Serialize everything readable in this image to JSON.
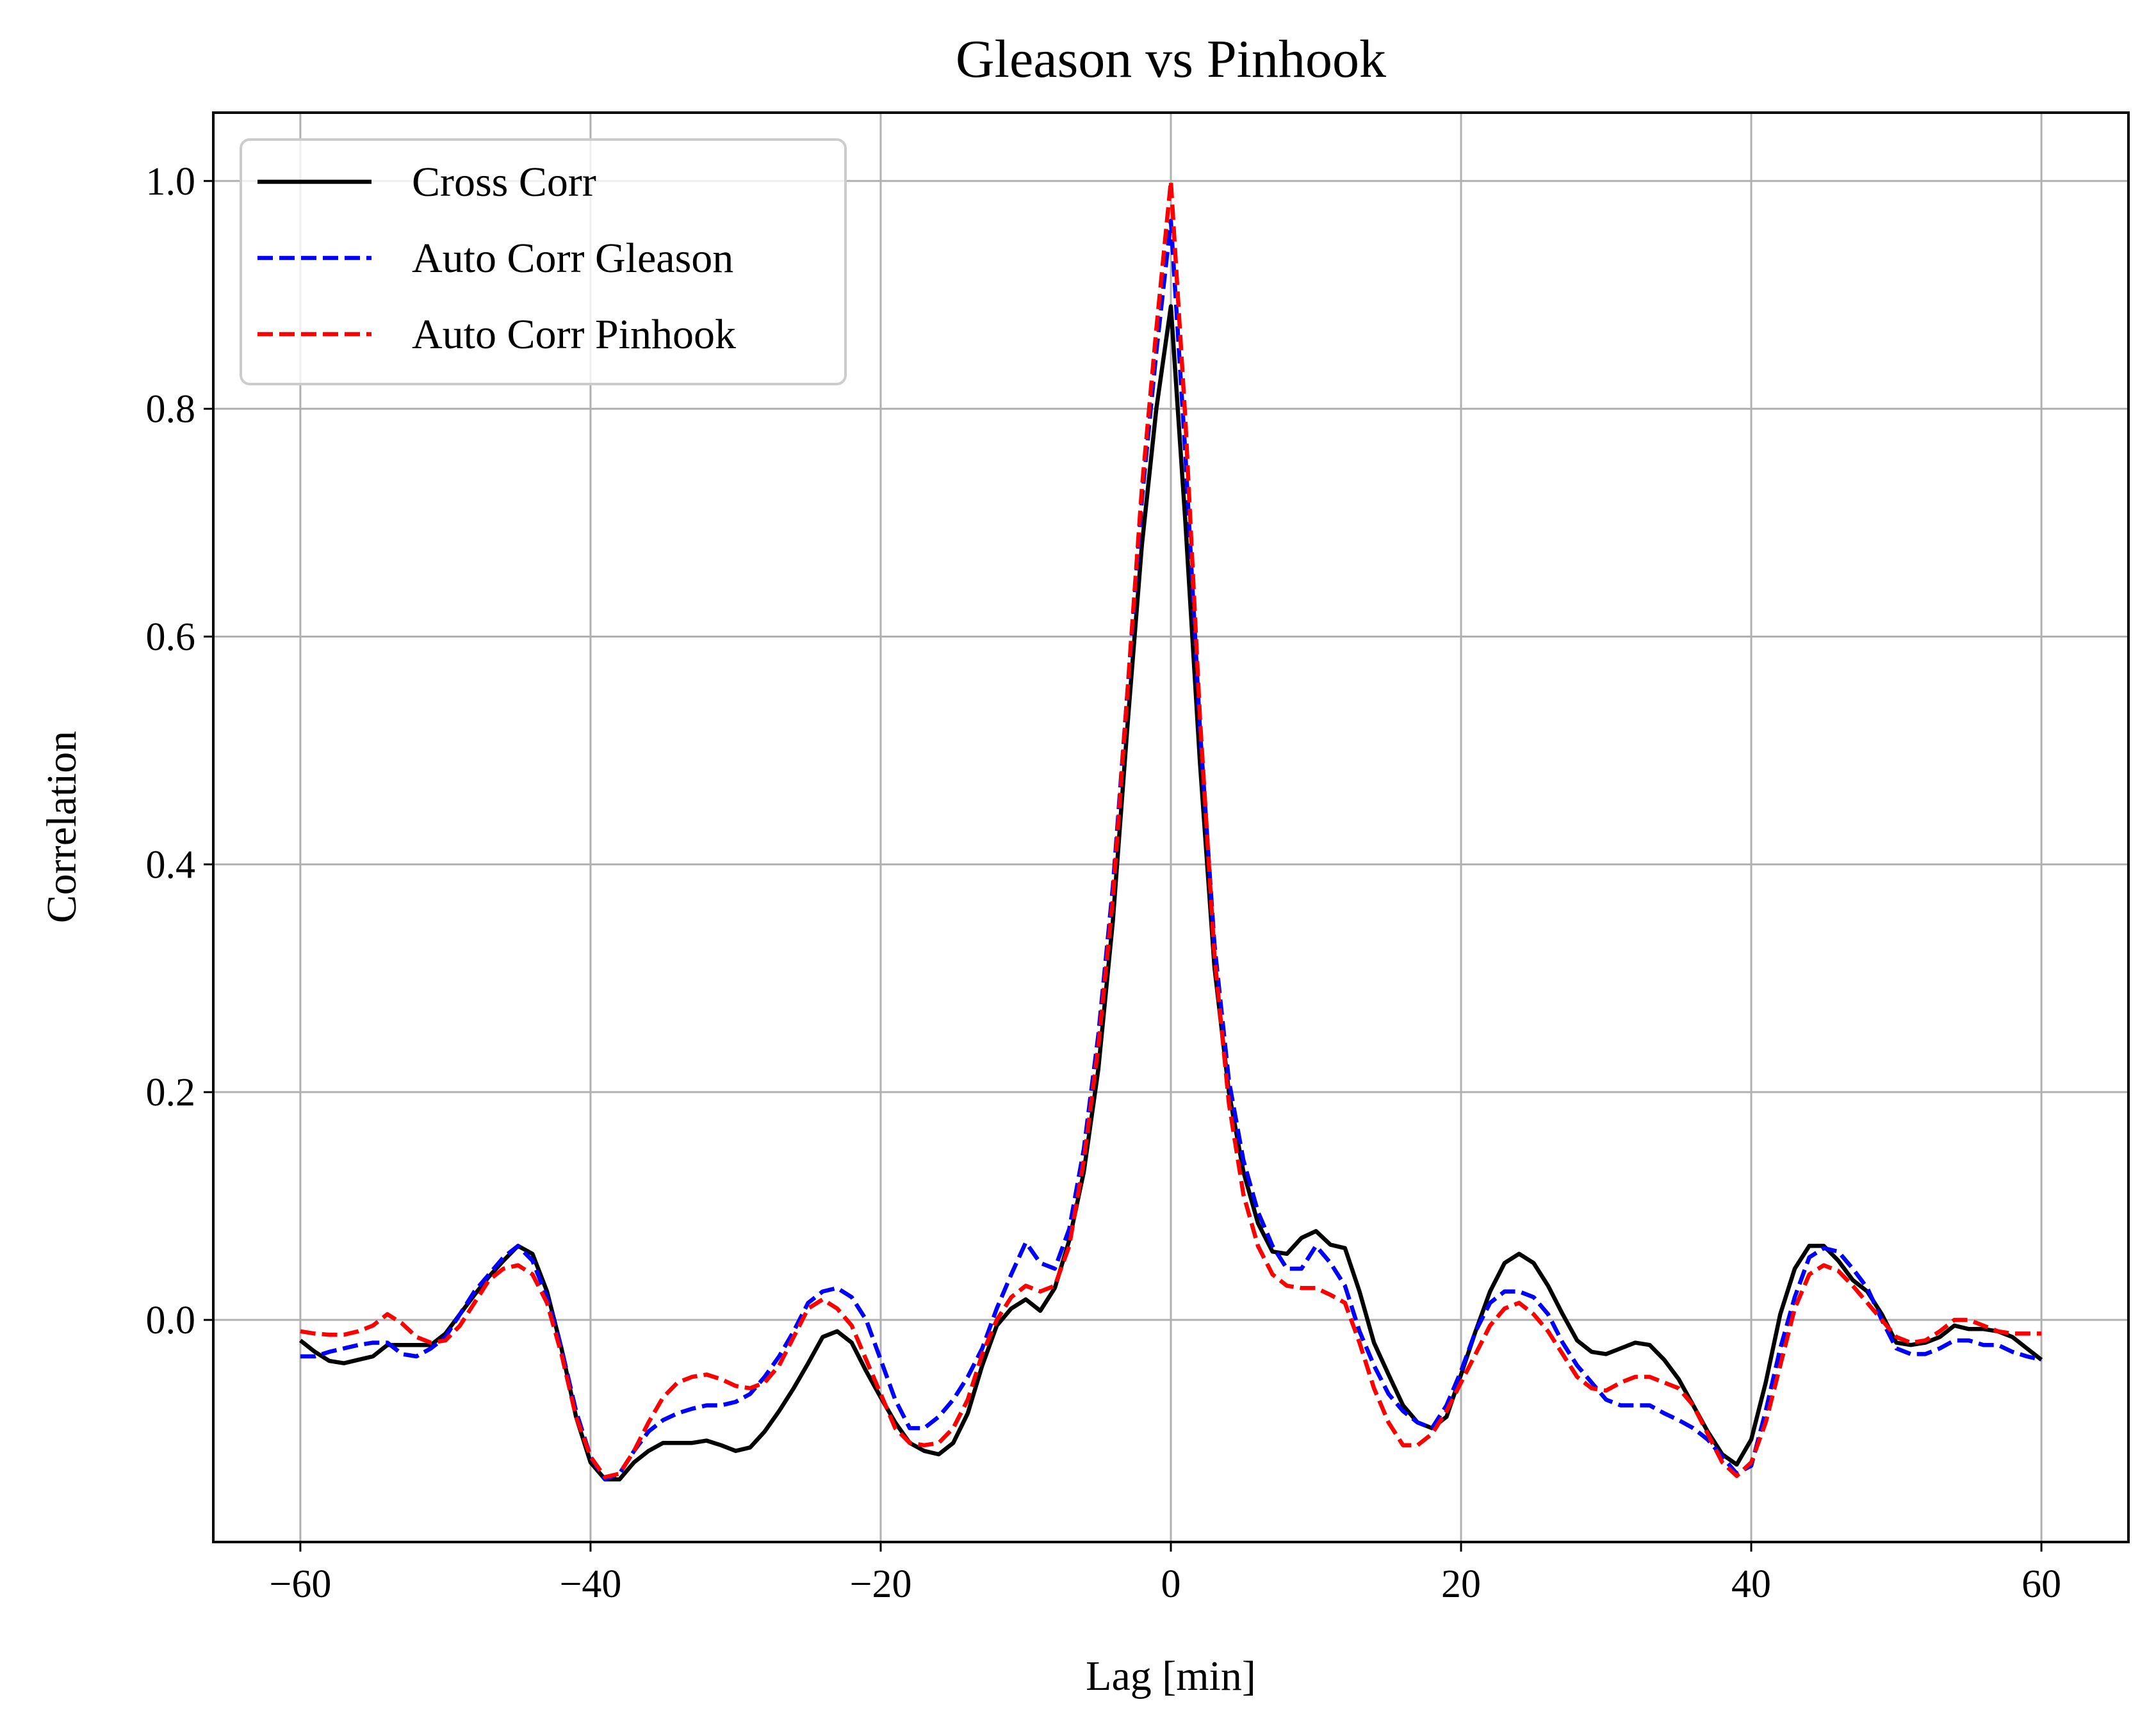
{
  "chart_data": {
    "type": "line",
    "title": "Gleason vs Pinhook",
    "xlabel": "Lag [min]",
    "ylabel": "Correlation",
    "xlim": [
      -66,
      66
    ],
    "ylim": [
      -0.195,
      1.06
    ],
    "xticks": [
      {
        "value": -60,
        "label": "−60"
      },
      {
        "value": -40,
        "label": "−40"
      },
      {
        "value": -20,
        "label": "−20"
      },
      {
        "value": 0,
        "label": "0"
      },
      {
        "value": 20,
        "label": "20"
      },
      {
        "value": 40,
        "label": "40"
      },
      {
        "value": 60,
        "label": "60"
      }
    ],
    "yticks": [
      {
        "value": 0.0,
        "label": "0.0"
      },
      {
        "value": 0.2,
        "label": "0.2"
      },
      {
        "value": 0.4,
        "label": "0.4"
      },
      {
        "value": 0.6,
        "label": "0.6"
      },
      {
        "value": 0.8,
        "label": "0.8"
      },
      {
        "value": 1.0,
        "label": "1.0"
      }
    ],
    "grid": true,
    "legend_position": "top-left",
    "series": [
      {
        "name": "Cross Corr",
        "color": "#000000",
        "dash": "solid",
        "x": [
          -60,
          -59,
          -58,
          -57,
          -56,
          -55,
          -54,
          -53,
          -52,
          -51,
          -50,
          -49,
          -48,
          -47,
          -46,
          -45,
          -44,
          -43,
          -42,
          -41,
          -40,
          -39,
          -38,
          -37,
          -36,
          -35,
          -34,
          -33,
          -32,
          -31,
          -30,
          -29,
          -28,
          -27,
          -26,
          -25,
          -24,
          -23,
          -22,
          -21,
          -20,
          -19,
          -18,
          -17,
          -16,
          -15,
          -14,
          -13,
          -12,
          -11,
          -10,
          -9,
          -8,
          -7,
          -6,
          -5,
          -4,
          -3,
          -2,
          -1,
          0,
          1,
          2,
          3,
          4,
          5,
          6,
          7,
          8,
          9,
          10,
          11,
          12,
          13,
          14,
          15,
          16,
          17,
          18,
          19,
          20,
          21,
          22,
          23,
          24,
          25,
          26,
          27,
          28,
          29,
          30,
          31,
          32,
          33,
          34,
          35,
          36,
          37,
          38,
          39,
          40,
          41,
          42,
          43,
          44,
          45,
          46,
          47,
          48,
          49,
          50,
          51,
          52,
          53,
          54,
          55,
          56,
          57,
          58,
          59,
          60
        ],
        "y": [
          -0.018,
          -0.028,
          -0.036,
          -0.038,
          -0.035,
          -0.032,
          -0.022,
          -0.022,
          -0.022,
          -0.022,
          -0.012,
          0.005,
          0.022,
          0.038,
          0.052,
          0.065,
          0.058,
          0.025,
          -0.025,
          -0.085,
          -0.125,
          -0.14,
          -0.14,
          -0.125,
          -0.115,
          -0.108,
          -0.108,
          -0.108,
          -0.106,
          -0.11,
          -0.115,
          -0.112,
          -0.098,
          -0.08,
          -0.06,
          -0.038,
          -0.015,
          -0.01,
          -0.02,
          -0.045,
          -0.068,
          -0.09,
          -0.108,
          -0.115,
          -0.118,
          -0.108,
          -0.082,
          -0.04,
          -0.005,
          0.01,
          0.018,
          0.008,
          0.028,
          0.07,
          0.13,
          0.22,
          0.35,
          0.52,
          0.68,
          0.8,
          0.89,
          0.7,
          0.49,
          0.31,
          0.2,
          0.13,
          0.085,
          0.06,
          0.058,
          0.072,
          0.078,
          0.066,
          0.063,
          0.025,
          -0.02,
          -0.048,
          -0.075,
          -0.09,
          -0.095,
          -0.085,
          -0.048,
          -0.01,
          0.025,
          0.05,
          0.058,
          0.05,
          0.03,
          0.005,
          -0.018,
          -0.028,
          -0.03,
          -0.025,
          -0.02,
          -0.022,
          -0.035,
          -0.052,
          -0.075,
          -0.098,
          -0.118,
          -0.127,
          -0.105,
          -0.055,
          0.005,
          0.045,
          0.065,
          0.065,
          0.052,
          0.035,
          0.025,
          0.005,
          -0.02,
          -0.022,
          -0.02,
          -0.015,
          -0.005,
          -0.008,
          -0.008,
          -0.01,
          -0.015,
          -0.025,
          -0.035
        ]
      },
      {
        "name": "Auto Corr Gleason",
        "color": "#0000ff",
        "dash": "dashed",
        "x": [
          -60,
          -59,
          -58,
          -57,
          -56,
          -55,
          -54,
          -53,
          -52,
          -51,
          -50,
          -49,
          -48,
          -47,
          -46,
          -45,
          -44,
          -43,
          -42,
          -41,
          -40,
          -39,
          -38,
          -37,
          -36,
          -35,
          -34,
          -33,
          -32,
          -31,
          -30,
          -29,
          -28,
          -27,
          -26,
          -25,
          -24,
          -23,
          -22,
          -21,
          -20,
          -19,
          -18,
          -17,
          -16,
          -15,
          -14,
          -13,
          -12,
          -11,
          -10,
          -9,
          -8,
          -7,
          -6,
          -5,
          -4,
          -3,
          -2,
          -1,
          0,
          1,
          2,
          3,
          4,
          5,
          6,
          7,
          8,
          9,
          10,
          11,
          12,
          13,
          14,
          15,
          16,
          17,
          18,
          19,
          20,
          21,
          22,
          23,
          24,
          25,
          26,
          27,
          28,
          29,
          30,
          31,
          32,
          33,
          34,
          35,
          36,
          37,
          38,
          39,
          40,
          41,
          42,
          43,
          44,
          45,
          46,
          47,
          48,
          49,
          50,
          51,
          52,
          53,
          54,
          55,
          56,
          57,
          58,
          59,
          60
        ],
        "y": [
          -0.032,
          -0.032,
          -0.028,
          -0.025,
          -0.022,
          -0.02,
          -0.02,
          -0.03,
          -0.032,
          -0.025,
          -0.015,
          0.005,
          0.025,
          0.04,
          0.055,
          0.065,
          0.052,
          0.02,
          -0.025,
          -0.08,
          -0.12,
          -0.14,
          -0.135,
          -0.115,
          -0.098,
          -0.088,
          -0.082,
          -0.078,
          -0.075,
          -0.075,
          -0.072,
          -0.065,
          -0.05,
          -0.032,
          -0.01,
          0.015,
          0.025,
          0.028,
          0.02,
          0.0,
          -0.035,
          -0.07,
          -0.095,
          -0.095,
          -0.085,
          -0.07,
          -0.05,
          -0.025,
          0.01,
          0.04,
          0.068,
          0.05,
          0.045,
          0.08,
          0.15,
          0.25,
          0.38,
          0.55,
          0.72,
          0.85,
          0.965,
          0.76,
          0.52,
          0.33,
          0.21,
          0.14,
          0.095,
          0.065,
          0.045,
          0.045,
          0.065,
          0.05,
          0.03,
          -0.01,
          -0.04,
          -0.065,
          -0.08,
          -0.09,
          -0.095,
          -0.075,
          -0.045,
          -0.01,
          0.015,
          0.025,
          0.025,
          0.02,
          0.005,
          -0.02,
          -0.04,
          -0.055,
          -0.07,
          -0.075,
          -0.075,
          -0.075,
          -0.082,
          -0.088,
          -0.095,
          -0.105,
          -0.12,
          -0.135,
          -0.128,
          -0.08,
          -0.025,
          0.02,
          0.055,
          0.063,
          0.06,
          0.045,
          0.028,
          0.0,
          -0.025,
          -0.03,
          -0.03,
          -0.025,
          -0.018,
          -0.018,
          -0.022,
          -0.022,
          -0.028,
          -0.032,
          -0.035
        ]
      },
      {
        "name": "Auto Corr Pinhook",
        "color": "#ff0000",
        "dash": "dashed",
        "x": [
          -60,
          -59,
          -58,
          -57,
          -56,
          -55,
          -54,
          -53,
          -52,
          -51,
          -50,
          -49,
          -48,
          -47,
          -46,
          -45,
          -44,
          -43,
          -42,
          -41,
          -40,
          -39,
          -38,
          -37,
          -36,
          -35,
          -34,
          -33,
          -32,
          -31,
          -30,
          -29,
          -28,
          -27,
          -26,
          -25,
          -24,
          -23,
          -22,
          -21,
          -20,
          -19,
          -18,
          -17,
          -16,
          -15,
          -14,
          -13,
          -12,
          -11,
          -10,
          -9,
          -8,
          -7,
          -6,
          -5,
          -4,
          -3,
          -2,
          -1,
          0,
          1,
          2,
          3,
          4,
          5,
          6,
          7,
          8,
          9,
          10,
          11,
          12,
          13,
          14,
          15,
          16,
          17,
          18,
          19,
          20,
          21,
          22,
          23,
          24,
          25,
          26,
          27,
          28,
          29,
          30,
          31,
          32,
          33,
          34,
          35,
          36,
          37,
          38,
          39,
          40,
          41,
          42,
          43,
          44,
          45,
          46,
          47,
          48,
          49,
          50,
          51,
          52,
          53,
          54,
          55,
          56,
          57,
          58,
          59,
          60
        ],
        "y": [
          -0.01,
          -0.012,
          -0.013,
          -0.013,
          -0.01,
          -0.005,
          0.005,
          -0.003,
          -0.015,
          -0.02,
          -0.018,
          -0.005,
          0.015,
          0.035,
          0.045,
          0.048,
          0.04,
          0.015,
          -0.03,
          -0.085,
          -0.12,
          -0.138,
          -0.135,
          -0.115,
          -0.09,
          -0.068,
          -0.055,
          -0.05,
          -0.048,
          -0.052,
          -0.058,
          -0.06,
          -0.055,
          -0.04,
          -0.015,
          0.01,
          0.018,
          0.01,
          -0.005,
          -0.035,
          -0.065,
          -0.095,
          -0.108,
          -0.11,
          -0.108,
          -0.095,
          -0.07,
          -0.03,
          0.0,
          0.02,
          0.03,
          0.025,
          0.03,
          0.065,
          0.14,
          0.24,
          0.37,
          0.55,
          0.73,
          0.87,
          1.0,
          0.79,
          0.53,
          0.32,
          0.19,
          0.11,
          0.065,
          0.04,
          0.03,
          0.028,
          0.028,
          0.022,
          0.015,
          -0.02,
          -0.06,
          -0.09,
          -0.11,
          -0.11,
          -0.1,
          -0.08,
          -0.055,
          -0.03,
          -0.005,
          0.01,
          0.015,
          0.005,
          -0.01,
          -0.03,
          -0.05,
          -0.06,
          -0.062,
          -0.055,
          -0.05,
          -0.05,
          -0.055,
          -0.06,
          -0.075,
          -0.1,
          -0.125,
          -0.137,
          -0.125,
          -0.09,
          -0.04,
          0.01,
          0.04,
          0.048,
          0.043,
          0.03,
          0.015,
          0.0,
          -0.015,
          -0.02,
          -0.018,
          -0.01,
          0.0,
          0.0,
          -0.005,
          -0.01,
          -0.012,
          -0.012,
          -0.012
        ]
      }
    ]
  }
}
